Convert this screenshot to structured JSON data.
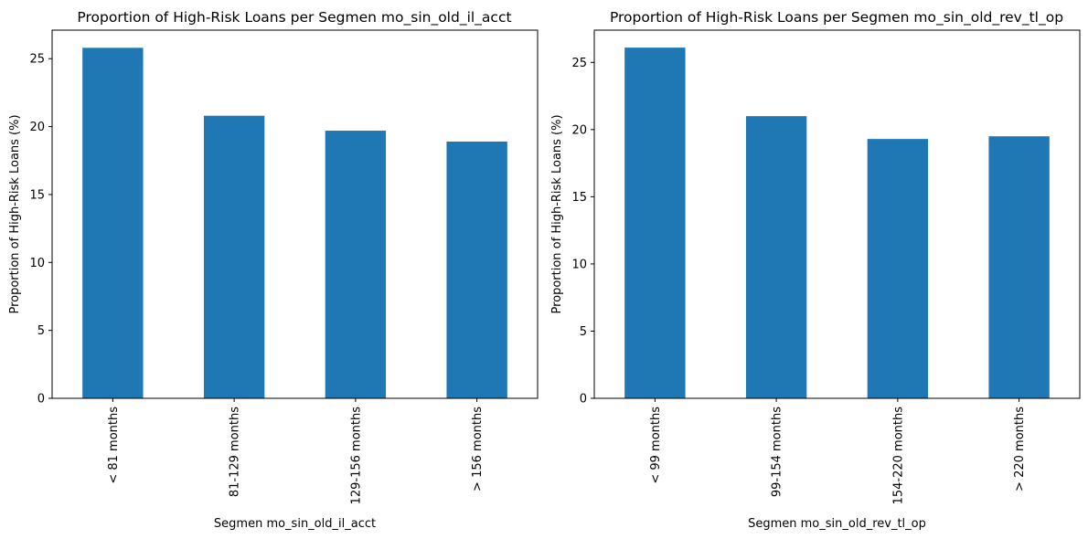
{
  "chart_data": [
    {
      "type": "bar",
      "title": "Proportion of High-Risk Loans per Segmen mo_sin_old_il_acct",
      "xlabel": "Segmen mo_sin_old_il_acct",
      "ylabel": "Proportion of High-Risk Loans (%)",
      "categories": [
        "< 81 months",
        "81-129 months",
        "129-156 months",
        "> 156 months"
      ],
      "values": [
        25.8,
        20.8,
        19.7,
        18.9
      ],
      "yticks": [
        "0",
        "5",
        "10",
        "15",
        "20",
        "25"
      ],
      "ylim": [
        0,
        27.1
      ],
      "grid": false,
      "bar_color": "#1f77b4"
    },
    {
      "type": "bar",
      "title": "Proportion of High-Risk Loans per Segmen mo_sin_old_rev_tl_op",
      "xlabel": "Segmen mo_sin_old_rev_tl_op",
      "ylabel": "Proportion of High-Risk Loans (%)",
      "categories": [
        "< 99 months",
        "99-154 months",
        "154-220 months",
        "> 220 months"
      ],
      "values": [
        26.1,
        21.0,
        19.3,
        19.5
      ],
      "yticks": [
        "0",
        "5",
        "10",
        "15",
        "20",
        "25"
      ],
      "ylim": [
        0,
        27.4
      ],
      "grid": false,
      "bar_color": "#1f77b4"
    }
  ]
}
